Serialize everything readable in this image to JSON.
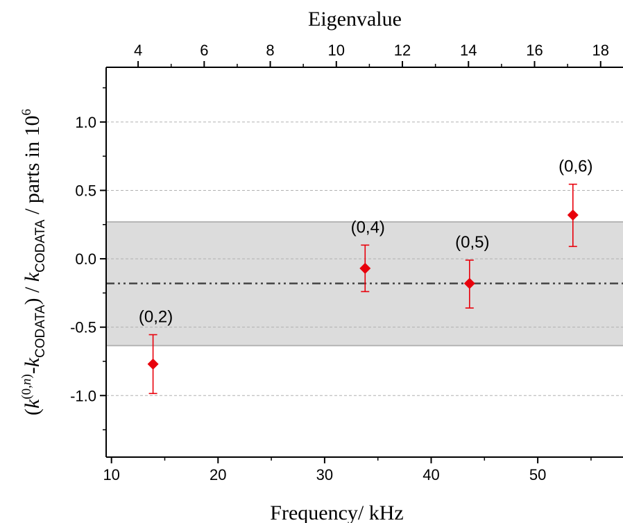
{
  "chart_data": {
    "type": "scatter",
    "xlabel": "Frequency/ kHz",
    "top_xlabel": "Eigenvalue",
    "ylabel": {
      "parts": [
        {
          "text": "(",
          "style": "normal"
        },
        {
          "text": "k",
          "style": "italic"
        },
        {
          "text": "(0,",
          "style": "sup"
        },
        {
          "text": "n",
          "style": "sup-italic"
        },
        {
          "text": ")",
          "style": "sup"
        },
        {
          "text": "-",
          "style": "normal"
        },
        {
          "text": "k",
          "style": "italic"
        },
        {
          "text": "CODATA",
          "style": "sub"
        },
        {
          "text": ") / ",
          "style": "normal"
        },
        {
          "text": "k",
          "style": "italic"
        },
        {
          "text": "CODATA",
          "style": "sub"
        },
        {
          "text": " / parts in 10",
          "style": "normal"
        },
        {
          "text": "6",
          "style": "sup"
        }
      ]
    },
    "xlim": [
      9.5,
      58
    ],
    "ylim": [
      -1.45,
      1.4
    ],
    "x_ticks": [
      "10",
      "20",
      "30",
      "40",
      "50"
    ],
    "x_tick_values": [
      10,
      20,
      30,
      40,
      50
    ],
    "y_ticks": [
      "1.0",
      "0.5",
      "0.0",
      "-0.5",
      "-1.0"
    ],
    "y_tick_values": [
      1.0,
      0.5,
      0.0,
      -0.5,
      -1.0
    ],
    "top_ticks": [
      "4",
      "6",
      "8",
      "10",
      "12",
      "14",
      "16",
      "18"
    ],
    "top_tick_positions_khz": [
      12.5,
      18.7,
      24.9,
      31.1,
      37.3,
      43.5,
      49.7,
      55.9
    ],
    "grid": "horizontal dashed at major y ticks",
    "points": [
      {
        "label": "(0,2)",
        "x": 13.9,
        "y": -0.77,
        "err_low": -0.985,
        "err_high": -0.555
      },
      {
        "label": "(0,4)",
        "x": 33.8,
        "y": -0.07,
        "err_low": -0.24,
        "err_high": 0.1
      },
      {
        "label": "(0,5)",
        "x": 43.6,
        "y": -0.18,
        "err_low": -0.36,
        "err_high": -0.01
      },
      {
        "label": "(0,6)",
        "x": 53.3,
        "y": 0.32,
        "err_low": 0.09,
        "err_high": 0.545
      }
    ],
    "mean_line": -0.18,
    "band": [
      -0.635,
      0.27
    ],
    "colors": {
      "point": "#e8000b",
      "errorbar": "#e8000b",
      "band": "#dcdcdc",
      "band_edge": "#b4b4b4",
      "mean_line": "#444444",
      "grid": "#b0b0b0"
    }
  }
}
